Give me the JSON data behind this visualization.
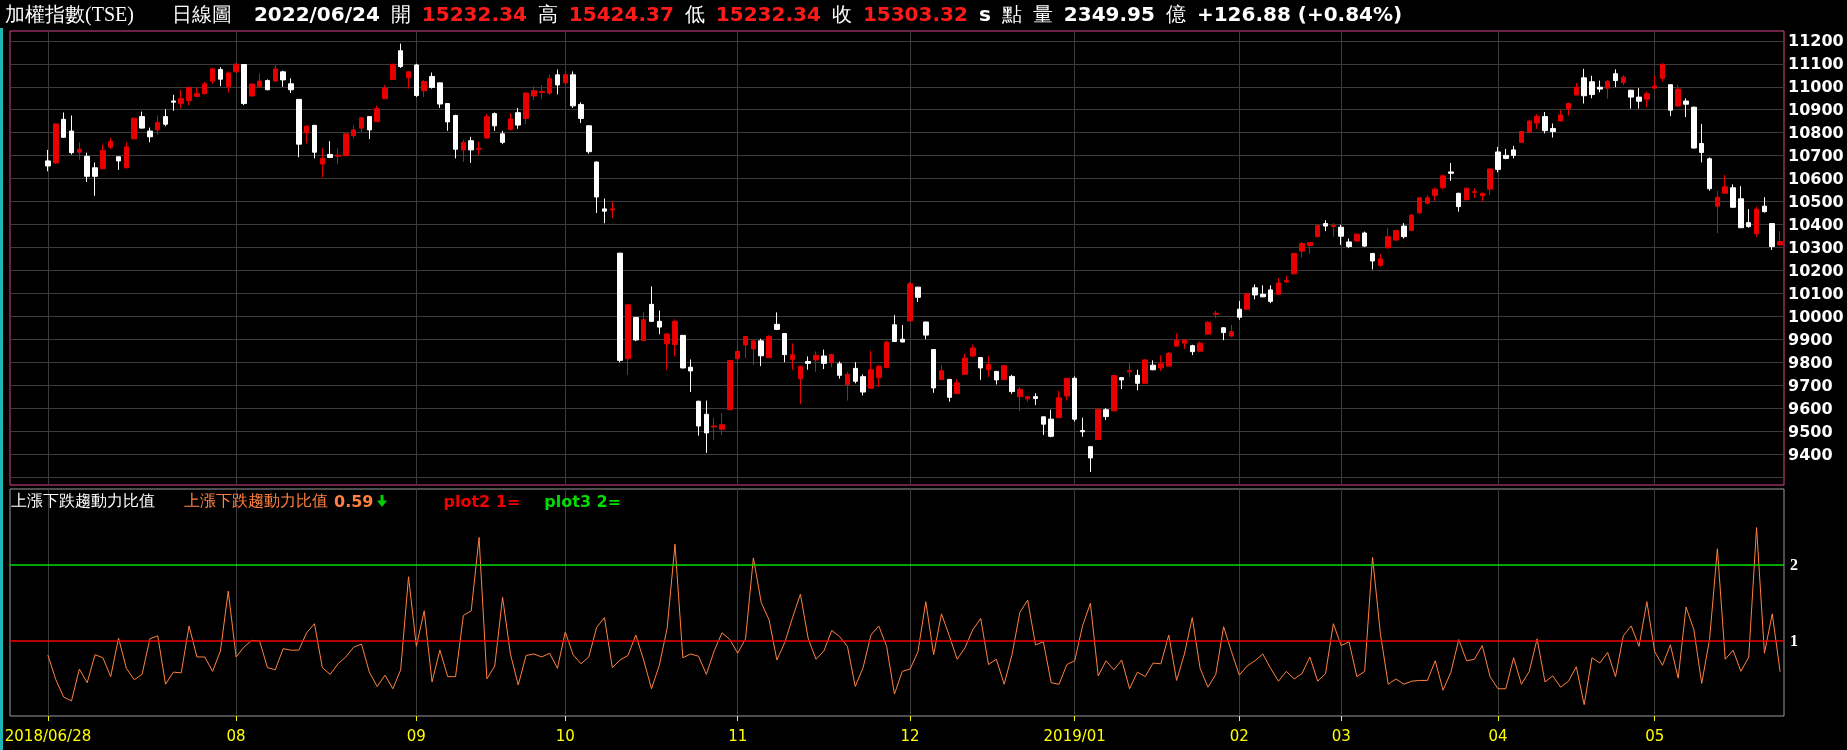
{
  "chart_data": [
    {
      "type": "candlestick",
      "title": "加權指數(TSE)",
      "subtitle": "日線圖",
      "annotations": [
        "2022/06/24",
        "開",
        "15232.34",
        "高",
        "15424.37",
        "低",
        "15232.34",
        "收",
        "15303.32",
        "s",
        "點",
        "量",
        "2349.95",
        "億",
        "+126.88 (+0.84%)"
      ],
      "categories": [
        "2018/06/28",
        null,
        null,
        null,
        null,
        null,
        null,
        null,
        null,
        null,
        null,
        null,
        null,
        null,
        null,
        null,
        null,
        null,
        null,
        null,
        null,
        null,
        null,
        null,
        "08",
        null,
        null,
        null,
        null,
        null,
        null,
        null,
        null,
        null,
        null,
        null,
        null,
        null,
        null,
        null,
        null,
        null,
        null,
        null,
        null,
        null,
        null,
        "09",
        null,
        null,
        null,
        null,
        null,
        null,
        null,
        null,
        null,
        null,
        null,
        null,
        null,
        null,
        null,
        null,
        null,
        null,
        "10",
        null,
        null,
        null,
        null,
        null,
        null,
        null,
        null,
        null,
        null,
        null,
        null,
        null,
        null,
        null,
        null,
        null,
        null,
        null,
        null,
        null,
        "11",
        null,
        null,
        null,
        null,
        null,
        null,
        null,
        null,
        null,
        null,
        null,
        null,
        null,
        null,
        null,
        null,
        null,
        null,
        null,
        null,
        null,
        "12",
        null,
        null,
        null,
        null,
        null,
        null,
        null,
        null,
        null,
        null,
        null,
        null,
        null,
        null,
        null,
        null,
        null,
        null,
        null,
        null,
        "2019/01",
        null,
        null,
        null,
        null,
        null,
        null,
        null,
        null,
        null,
        null,
        null,
        null,
        null,
        null,
        null,
        null,
        null,
        null,
        null,
        null,
        "02",
        null,
        null,
        null,
        null,
        null,
        null,
        null,
        null,
        null,
        null,
        null,
        null,
        "03",
        null,
        null,
        null,
        null,
        null,
        null,
        null,
        null,
        null,
        null,
        null,
        null,
        null,
        null,
        null,
        null,
        null,
        null,
        null,
        "04",
        null,
        null,
        null,
        null,
        null,
        null,
        null,
        null,
        null,
        null,
        null,
        null,
        null,
        null,
        null,
        null,
        null,
        null,
        null,
        "05",
        null,
        null,
        null,
        null,
        null,
        null,
        null,
        null,
        null,
        null,
        null,
        null,
        null,
        null,
        null,
        null
      ],
      "ohlc": [
        [
          10677,
          10725,
          10632,
          10655
        ],
        [
          10668,
          10842,
          10665,
          10838
        ],
        [
          10858,
          10888,
          10778,
          10780
        ],
        [
          10807,
          10875,
          10705,
          10713
        ],
        [
          10715,
          10758,
          10682,
          10728
        ],
        [
          10697,
          10713,
          10585,
          10610
        ],
        [
          10647,
          10670,
          10525,
          10610
        ],
        [
          10643,
          10748,
          10642,
          10722
        ],
        [
          10737,
          10778,
          10728,
          10762
        ],
        [
          10695,
          10695,
          10638,
          10677
        ],
        [
          10647,
          10758,
          10645,
          10738
        ],
        [
          10773,
          10867,
          10772,
          10863
        ],
        [
          10870,
          10892,
          10818,
          10820
        ],
        [
          10807,
          10822,
          10758,
          10782
        ],
        [
          10812,
          10875,
          10790,
          10845
        ],
        [
          10870,
          10902,
          10828,
          10837
        ],
        [
          10938,
          10965,
          10895,
          10933
        ],
        [
          10928,
          10987,
          10905,
          10948
        ],
        [
          10940,
          11000,
          10920,
          10997
        ],
        [
          10958,
          10997,
          10957,
          10970
        ],
        [
          10970,
          11022,
          10968,
          11013
        ],
        [
          11025,
          11083,
          11013,
          11078
        ],
        [
          11075,
          11085,
          11003,
          11033
        ],
        [
          11000,
          11067,
          10975,
          11060
        ],
        [
          11065,
          11103,
          11063,
          11098
        ],
        [
          11097,
          11098,
          10920,
          10927
        ],
        [
          10960,
          11015,
          10958,
          11012
        ],
        [
          11000,
          11058,
          10995,
          11025
        ],
        [
          11027,
          11032,
          10985,
          10987
        ],
        [
          11025,
          11097,
          11023,
          11078
        ],
        [
          11065,
          11070,
          11000,
          11030
        ],
        [
          11013,
          11037,
          10973,
          10987
        ],
        [
          10945,
          10947,
          10693,
          10750
        ],
        [
          10800,
          10833,
          10753,
          10828
        ],
        [
          10832,
          10833,
          10688,
          10715
        ],
        [
          10663,
          10732,
          10605,
          10688
        ],
        [
          10705,
          10763,
          10690,
          10692
        ],
        [
          10697,
          10732,
          10662,
          10702
        ],
        [
          10700,
          10797,
          10698,
          10795
        ],
        [
          10787,
          10832,
          10775,
          10812
        ],
        [
          10820,
          10868,
          10803,
          10865
        ],
        [
          10870,
          10872,
          10772,
          10812
        ],
        [
          10848,
          10918,
          10847,
          10905
        ],
        [
          10948,
          11008,
          10947,
          10992
        ],
        [
          11032,
          11100,
          11030,
          11098
        ],
        [
          11157,
          11188,
          11082,
          11088
        ],
        [
          11040,
          11067,
          10992,
          11065
        ],
        [
          11095,
          11100,
          10955,
          10962
        ],
        [
          10983,
          11030,
          10955,
          11023
        ],
        [
          11045,
          11062,
          10992,
          10997
        ],
        [
          11017,
          11018,
          10908,
          10925
        ],
        [
          10927,
          10928,
          10808,
          10847
        ],
        [
          10875,
          10878,
          10688,
          10728
        ],
        [
          10725,
          10770,
          10672,
          10757
        ],
        [
          10765,
          10782,
          10668,
          10725
        ],
        [
          10728,
          10762,
          10703,
          10732
        ],
        [
          10777,
          10882,
          10773,
          10870
        ],
        [
          10883,
          10888,
          10808,
          10830
        ],
        [
          10795,
          10808,
          10750,
          10758
        ],
        [
          10813,
          10885,
          10812,
          10860
        ],
        [
          10887,
          10908,
          10817,
          10833
        ],
        [
          10862,
          10975,
          10838,
          10973
        ],
        [
          10960,
          11003,
          10942,
          10983
        ],
        [
          10975,
          11008,
          10948,
          10980
        ],
        [
          10972,
          11053,
          10965,
          11035
        ],
        [
          11052,
          11075,
          10967,
          11008
        ],
        [
          11017,
          11067,
          11015,
          11053
        ],
        [
          11052,
          11067,
          10908,
          10917
        ],
        [
          10923,
          10932,
          10842,
          10862
        ],
        [
          10830,
          10832,
          10708,
          10717
        ],
        [
          10672,
          10675,
          10450,
          10520
        ],
        [
          10468,
          10513,
          10405,
          10458
        ],
        [
          10463,
          10500,
          10428,
          10468
        ],
        [
          10275,
          10277,
          9800,
          9808
        ],
        [
          9815,
          10052,
          9745,
          10050
        ],
        [
          9995,
          9997,
          9892,
          9897
        ],
        [
          9895,
          10017,
          9893,
          9985
        ],
        [
          10052,
          10130,
          9977,
          9978
        ],
        [
          9978,
          10025,
          9922,
          9953
        ],
        [
          9880,
          9927,
          9767,
          9923
        ],
        [
          9877,
          9987,
          9825,
          9978
        ],
        [
          9917,
          9918,
          9773,
          9775
        ],
        [
          9778,
          9812,
          9670,
          9762
        ],
        [
          9630,
          9632,
          9480,
          9522
        ],
        [
          9573,
          9633,
          9405,
          9492
        ],
        [
          9518,
          9558,
          9462,
          9522
        ],
        [
          9508,
          9578,
          9483,
          9528
        ],
        [
          9593,
          9808,
          9592,
          9807
        ],
        [
          9815,
          9872,
          9742,
          9847
        ],
        [
          9875,
          9913,
          9818,
          9912
        ],
        [
          9858,
          9897,
          9788,
          9893
        ],
        [
          9893,
          9902,
          9783,
          9828
        ],
        [
          9820,
          9917,
          9818,
          9913
        ],
        [
          9965,
          10017,
          9940,
          9943
        ],
        [
          9925,
          9927,
          9800,
          9833
        ],
        [
          9812,
          9882,
          9767,
          9832
        ],
        [
          9728,
          9785,
          9617,
          9782
        ],
        [
          9803,
          9825,
          9767,
          9795
        ],
        [
          9810,
          9847,
          9758,
          9830
        ],
        [
          9827,
          9855,
          9770,
          9795
        ],
        [
          9798,
          9838,
          9778,
          9833
        ],
        [
          9793,
          9803,
          9728,
          9743
        ],
        [
          9703,
          9758,
          9633,
          9747
        ],
        [
          9773,
          9800,
          9708,
          9717
        ],
        [
          9737,
          9747,
          9655,
          9670
        ],
        [
          9687,
          9850,
          9685,
          9767
        ],
        [
          9733,
          9788,
          9692,
          9782
        ],
        [
          9777,
          9893,
          9773,
          9887
        ],
        [
          9963,
          10005,
          9888,
          9890
        ],
        [
          9900,
          9962,
          9887,
          9888
        ],
        [
          9980,
          10150,
          9978,
          10142
        ],
        [
          10127,
          10128,
          10063,
          10083
        ],
        [
          9975,
          9977,
          9900,
          9918
        ],
        [
          9855,
          9857,
          9667,
          9688
        ],
        [
          9725,
          9788,
          9723,
          9763
        ],
        [
          9725,
          9727,
          9628,
          9647
        ],
        [
          9663,
          9725,
          9662,
          9710
        ],
        [
          9747,
          9837,
          9745,
          9818
        ],
        [
          9827,
          9877,
          9822,
          9862
        ],
        [
          9820,
          9822,
          9723,
          9775
        ],
        [
          9767,
          9828,
          9735,
          9790
        ],
        [
          9760,
          9762,
          9703,
          9723
        ],
        [
          9725,
          9787,
          9723,
          9785
        ],
        [
          9738,
          9745,
          9662,
          9672
        ],
        [
          9650,
          9692,
          9587,
          9682
        ],
        [
          9640,
          9653,
          9628,
          9650
        ],
        [
          9650,
          9665,
          9613,
          9642
        ],
        [
          9562,
          9563,
          9483,
          9530
        ],
        [
          9552,
          9593,
          9473,
          9477
        ],
        [
          9558,
          9675,
          9557,
          9645
        ],
        [
          9653,
          9732,
          9633,
          9730
        ],
        [
          9730,
          9738,
          9542,
          9552
        ],
        [
          9502,
          9558,
          9475,
          9497
        ],
        [
          9432,
          9433,
          9322,
          9383
        ],
        [
          9463,
          9597,
          9462,
          9595
        ],
        [
          9593,
          9600,
          9548,
          9563
        ],
        [
          9588,
          9745,
          9587,
          9742
        ],
        [
          9733,
          9735,
          9683,
          9723
        ],
        [
          9758,
          9798,
          9735,
          9763
        ],
        [
          9743,
          9767,
          9678,
          9708
        ],
        [
          9708,
          9812,
          9707,
          9810
        ],
        [
          9787,
          9808,
          9765,
          9767
        ],
        [
          9775,
          9830,
          9762,
          9793
        ],
        [
          9783,
          9845,
          9782,
          9838
        ],
        [
          9870,
          9925,
          9868,
          9895
        ],
        [
          9883,
          9898,
          9858,
          9897
        ],
        [
          9872,
          9876,
          9831,
          9846
        ],
        [
          9848,
          9890,
          9844,
          9883
        ],
        [
          9922,
          9979,
          9920,
          9974
        ],
        [
          10009,
          10024,
          9992,
          10013
        ],
        [
          9950,
          9953,
          9896,
          9929
        ],
        [
          9914,
          9963,
          9909,
          9933
        ],
        [
          10031,
          10067,
          9985,
          9996
        ],
        [
          10031,
          10102,
          10029,
          10098
        ],
        [
          10124,
          10139,
          10074,
          10093
        ],
        [
          10096,
          10135,
          10083,
          10085
        ],
        [
          10115,
          10135,
          10057,
          10065
        ],
        [
          10096,
          10167,
          10094,
          10145
        ],
        [
          10150,
          10176,
          10145,
          10156
        ],
        [
          10185,
          10276,
          10182,
          10274
        ],
        [
          10284,
          10324,
          10256,
          10317
        ],
        [
          10308,
          10324,
          10271,
          10321
        ],
        [
          10347,
          10397,
          10345,
          10395
        ],
        [
          10404,
          10419,
          10371,
          10393
        ],
        [
          10391,
          10406,
          10347,
          10397
        ],
        [
          10388,
          10399,
          10311,
          10349
        ],
        [
          10324,
          10339,
          10297,
          10304
        ],
        [
          10328,
          10360,
          10326,
          10358
        ],
        [
          10363,
          10369,
          10302,
          10306
        ],
        [
          10274,
          10276,
          10204,
          10241
        ],
        [
          10222,
          10271,
          10215,
          10250
        ],
        [
          10298,
          10386,
          10297,
          10347
        ],
        [
          10332,
          10378,
          10330,
          10374
        ],
        [
          10393,
          10406,
          10339,
          10347
        ],
        [
          10374,
          10445,
          10371,
          10441
        ],
        [
          10451,
          10519,
          10445,
          10516
        ],
        [
          10493,
          10528,
          10486,
          10517
        ],
        [
          10527,
          10560,
          10504,
          10554
        ],
        [
          10560,
          10618,
          10553,
          10612
        ],
        [
          10629,
          10668,
          10590,
          10623
        ],
        [
          10536,
          10538,
          10456,
          10478
        ],
        [
          10508,
          10560,
          10506,
          10558
        ],
        [
          10540,
          10558,
          10516,
          10543
        ],
        [
          10525,
          10538,
          10501,
          10536
        ],
        [
          10554,
          10645,
          10528,
          10642
        ],
        [
          10716,
          10738,
          10627,
          10640
        ],
        [
          10701,
          10729,
          10684,
          10688
        ],
        [
          10725,
          10742,
          10688,
          10701
        ],
        [
          10758,
          10809,
          10755,
          10805
        ],
        [
          10803,
          10855,
          10796,
          10851
        ],
        [
          10842,
          10881,
          10816,
          10870
        ],
        [
          10870,
          10890,
          10797,
          10809
        ],
        [
          10818,
          10840,
          10779,
          10805
        ],
        [
          10851,
          10899,
          10849,
          10877
        ],
        [
          10905,
          10931,
          10875,
          10927
        ],
        [
          10964,
          11016,
          10963,
          10998
        ],
        [
          11039,
          11078,
          10927,
          10961
        ],
        [
          11022,
          11048,
          10950,
          10966
        ],
        [
          10998,
          11027,
          10976,
          10990
        ],
        [
          10994,
          11029,
          10948,
          11024
        ],
        [
          11057,
          11076,
          10998,
          11027
        ],
        [
          11018,
          11050,
          11007,
          11042
        ],
        [
          10985,
          10987,
          10905,
          10955
        ],
        [
          10955,
          10994,
          10905,
          10937
        ],
        [
          10946,
          10979,
          10911,
          10970
        ],
        [
          10994,
          11048,
          10992,
          11003
        ],
        [
          11037,
          11102,
          11022,
          11098
        ],
        [
          11009,
          11011,
          10872,
          10898
        ],
        [
          10916,
          11009,
          10914,
          10990
        ],
        [
          10938,
          10950,
          10868,
          10924
        ],
        [
          10911,
          10914,
          10731,
          10733
        ],
        [
          10753,
          10838,
          10671,
          10714
        ],
        [
          10686,
          10692,
          10547,
          10556
        ],
        [
          10480,
          10547,
          10362,
          10519
        ],
        [
          10536,
          10616,
          10534,
          10564
        ],
        [
          10560,
          10575,
          10473,
          10475
        ],
        [
          10512,
          10567,
          10384,
          10386
        ],
        [
          10408,
          10467,
          10386,
          10391
        ],
        [
          10360,
          10478,
          10345,
          10467
        ],
        [
          10480,
          10519,
          10452,
          10456
        ],
        [
          10404,
          10406,
          10289,
          10304
        ],
        [
          10311,
          10371,
          10310,
          10326
        ]
      ],
      "colors": [
        "#ffffff",
        "#e60000",
        "#ffffff",
        "#ffffff",
        "#e60000",
        "#ffffff",
        "#ffffff",
        "#e60000",
        "#e60000",
        "#ffffff",
        "#e60000",
        "#e60000",
        "#ffffff",
        "#ffffff",
        "#e60000",
        "#ffffff",
        "#ffffff",
        "#e60000",
        "#e60000",
        "#e60000",
        "#e60000",
        "#e60000",
        "#ffffff",
        "#e60000",
        "#e60000",
        "#ffffff",
        "#e60000",
        "#e60000",
        "#ffffff",
        "#e60000",
        "#ffffff",
        "#ffffff",
        "#ffffff",
        "#e60000",
        "#ffffff",
        "#e60000",
        "#ffffff",
        "#e60000",
        "#e60000",
        "#e60000",
        "#e60000",
        "#ffffff",
        "#e60000",
        "#e60000",
        "#e60000",
        "#ffffff",
        "#e60000",
        "#ffffff",
        "#e60000",
        "#ffffff",
        "#ffffff",
        "#ffffff",
        "#ffffff",
        "#e60000",
        "#ffffff",
        "#e60000",
        "#e60000",
        "#ffffff",
        "#ffffff",
        "#e60000",
        "#ffffff",
        "#e60000",
        "#e60000",
        "#e60000",
        "#e60000",
        "#ffffff",
        "#e60000",
        "#ffffff",
        "#ffffff",
        "#ffffff",
        "#ffffff",
        "#ffffff",
        "#e60000",
        "#ffffff",
        "#e60000",
        "#ffffff",
        "#e60000",
        "#ffffff",
        "#ffffff",
        "#e60000",
        "#e60000",
        "#ffffff",
        "#ffffff",
        "#ffffff",
        "#ffffff",
        "#e60000",
        "#e60000",
        "#e60000",
        "#e60000",
        "#e60000",
        "#e60000",
        "#ffffff",
        "#e60000",
        "#ffffff",
        "#ffffff",
        "#e60000",
        "#e60000",
        "#ffffff",
        "#e60000",
        "#ffffff",
        "#e60000",
        "#ffffff",
        "#e60000",
        "#ffffff",
        "#ffffff",
        "#e60000",
        "#e60000",
        "#e60000",
        "#ffffff",
        "#ffffff",
        "#e60000",
        "#ffffff",
        "#ffffff",
        "#ffffff",
        "#e60000",
        "#ffffff",
        "#e60000",
        "#e60000",
        "#e60000",
        "#ffffff",
        "#e60000",
        "#ffffff",
        "#e60000",
        "#ffffff",
        "#e60000",
        "#e60000",
        "#ffffff",
        "#ffffff",
        "#ffffff",
        "#e60000",
        "#e60000",
        "#ffffff",
        "#ffffff",
        "#ffffff",
        "#e60000",
        "#ffffff",
        "#e60000",
        "#ffffff",
        "#e60000",
        "#ffffff",
        "#e60000",
        "#ffffff",
        "#e60000",
        "#e60000",
        "#e60000",
        "#e60000",
        "#ffffff",
        "#e60000",
        "#e60000",
        "#e60000",
        "#ffffff",
        "#e60000",
        "#ffffff",
        "#e60000",
        "#ffffff",
        "#ffffff",
        "#ffffff",
        "#e60000",
        "#e60000",
        "#e60000",
        "#e60000",
        "#e60000",
        "#e60000",
        "#ffffff",
        "#e60000",
        "#ffffff",
        "#ffffff",
        "#e60000",
        "#ffffff",
        "#ffffff",
        "#e60000",
        "#e60000",
        "#e60000",
        "#ffffff",
        "#e60000",
        "#e60000",
        "#e60000",
        "#e60000",
        "#e60000",
        "#ffffff",
        "#ffffff",
        "#e60000",
        "#e60000",
        "#e60000",
        "#e60000",
        "#ffffff",
        "#ffffff",
        "#ffffff",
        "#e60000",
        "#e60000",
        "#e60000",
        "#ffffff",
        "#ffffff",
        "#e60000",
        "#e60000",
        "#e60000",
        "#ffffff",
        "#ffffff",
        "#ffffff",
        "#e60000",
        "#ffffff",
        "#e60000",
        "#ffffff",
        "#ffffff",
        "#e60000",
        "#e60000",
        "#e60000",
        "#ffffff",
        "#e60000",
        "#ffffff",
        "#ffffff",
        "#ffffff",
        "#ffffff",
        "#e60000",
        "#e60000",
        "#ffffff",
        "#ffffff",
        "#ffffff",
        "#e60000",
        "#ffffff",
        "#ffffff",
        "#e60000"
      ],
      "ylim": [
        9265,
        11243
      ],
      "yticks": [
        {
          "value": 9300,
          "label": null
        },
        9400,
        9500,
        9600,
        9700,
        9800,
        9900,
        10000,
        10100,
        10200,
        10300,
        10400,
        10500,
        10600,
        10700,
        10800,
        10900,
        11000,
        11100,
        11200
      ],
      "grid": true,
      "tick_labels": "y"
    },
    {
      "type": "line",
      "title": "上漲下跌趨動力比值",
      "annotations": [
        "0.59"
      ],
      "categories": [
        "2018/06/28",
        null,
        null,
        null,
        null,
        null,
        null,
        null,
        null,
        null,
        null,
        null,
        null,
        null,
        null,
        null,
        null,
        null,
        null,
        null,
        null,
        null,
        null,
        null,
        "08",
        null,
        null,
        null,
        null,
        null,
        null,
        null,
        null,
        null,
        null,
        null,
        null,
        null,
        null,
        null,
        null,
        null,
        null,
        null,
        null,
        null,
        null,
        "09",
        null,
        null,
        null,
        null,
        null,
        null,
        null,
        null,
        null,
        null,
        null,
        null,
        null,
        null,
        null,
        null,
        null,
        null,
        "10",
        null,
        null,
        null,
        null,
        null,
        null,
        null,
        null,
        null,
        null,
        null,
        null,
        null,
        null,
        null,
        null,
        null,
        null,
        null,
        null,
        null,
        "11",
        null,
        null,
        null,
        null,
        null,
        null,
        null,
        null,
        null,
        null,
        null,
        null,
        null,
        null,
        null,
        null,
        null,
        null,
        null,
        null,
        null,
        "12",
        null,
        null,
        null,
        null,
        null,
        null,
        null,
        null,
        null,
        null,
        null,
        null,
        null,
        null,
        null,
        null,
        null,
        null,
        null,
        null,
        "2019/01",
        null,
        null,
        null,
        null,
        null,
        null,
        null,
        null,
        null,
        null,
        null,
        null,
        null,
        null,
        null,
        null,
        null,
        null,
        null,
        null,
        "02",
        null,
        null,
        null,
        null,
        null,
        null,
        null,
        null,
        null,
        null,
        null,
        null,
        "03",
        null,
        null,
        null,
        null,
        null,
        null,
        null,
        null,
        null,
        null,
        null,
        null,
        null,
        null,
        null,
        null,
        null,
        null,
        null,
        "04",
        null,
        null,
        null,
        null,
        null,
        null,
        null,
        null,
        null,
        null,
        null,
        null,
        null,
        null,
        null,
        null,
        null,
        null,
        null,
        "05",
        null,
        null,
        null,
        null,
        null,
        null,
        null,
        null,
        null,
        null,
        null,
        null,
        null,
        null,
        null,
        null
      ],
      "series": [
        {
          "name": "上漲下跌趨動力比值",
          "color": "#ff8040",
          "values": [
            0.8,
            0.48,
            0.25,
            0.2,
            0.62,
            0.44,
            0.81,
            0.77,
            0.52,
            1.03,
            0.63,
            0.48,
            0.55,
            1.02,
            1.06,
            0.42,
            0.58,
            0.57,
            1.19,
            0.78,
            0.78,
            0.59,
            0.86,
            1.65,
            0.78,
            0.91,
            1.0,
            0.99,
            0.64,
            0.61,
            0.89,
            0.87,
            0.87,
            1.1,
            1.22,
            0.64,
            0.55,
            0.69,
            0.78,
            0.91,
            0.95,
            0.58,
            0.39,
            0.54,
            0.36,
            0.61,
            1.84,
            0.92,
            1.39,
            0.45,
            0.87,
            0.52,
            0.52,
            1.33,
            1.39,
            2.36,
            0.49,
            0.66,
            1.57,
            0.82,
            0.41,
            0.8,
            0.82,
            0.78,
            0.83,
            0.63,
            1.11,
            0.81,
            0.69,
            0.78,
            1.17,
            1.3,
            0.64,
            0.74,
            0.8,
            1.07,
            0.74,
            0.36,
            0.67,
            1.16,
            2.27,
            0.77,
            0.82,
            0.79,
            0.55,
            0.86,
            1.1,
            1.01,
            0.83,
            1.02,
            2.09,
            1.5,
            1.27,
            0.74,
            0.97,
            1.3,
            1.61,
            1.02,
            0.75,
            0.86,
            1.13,
            1.05,
            0.92,
            0.39,
            0.64,
            1.07,
            1.19,
            0.92,
            0.29,
            0.59,
            0.62,
            0.85,
            1.51,
            0.81,
            1.35,
            1.06,
            0.75,
            0.9,
            1.14,
            1.29,
            0.68,
            0.75,
            0.42,
            0.81,
            1.37,
            1.53,
            0.94,
            0.98,
            0.44,
            0.42,
            0.68,
            0.73,
            1.19,
            1.49,
            0.53,
            0.73,
            0.61,
            0.74,
            0.36,
            0.58,
            0.52,
            0.7,
            0.69,
            1.07,
            0.47,
            0.82,
            1.3,
            0.63,
            0.38,
            0.55,
            1.18,
            0.85,
            0.54,
            0.66,
            0.73,
            0.82,
            0.63,
            0.46,
            0.59,
            0.49,
            0.56,
            0.78,
            0.46,
            0.56,
            1.22,
            0.93,
            0.98,
            0.52,
            0.59,
            2.1,
            1.09,
            0.42,
            0.49,
            0.42,
            0.46,
            0.47,
            0.47,
            0.73,
            0.34,
            0.58,
            1.01,
            0.73,
            0.75,
            0.93,
            0.52,
            0.36,
            0.36,
            0.77,
            0.42,
            0.59,
            1.02,
            0.45,
            0.53,
            0.38,
            0.46,
            0.65,
            0.15,
            0.77,
            0.7,
            0.84,
            0.52,
            1.06,
            1.19,
            0.92,
            1.51,
            0.85,
            0.67,
            0.94,
            0.5,
            1.44,
            1.14,
            0.43,
            1.01,
            2.21,
            0.75,
            0.87,
            0.59,
            0.78,
            2.49,
            0.83,
            1.35,
            0.59
          ]
        }
      ],
      "ylim": [
        0,
        3
      ],
      "yticks": [
        1,
        2
      ],
      "grid": "x",
      "legend": "top left",
      "ref_lines": [
        {
          "axis": "y",
          "value": 1,
          "label": "plot2 1=",
          "color": "#f00000"
        },
        {
          "axis": "y",
          "value": 2,
          "label": "plot3 2=",
          "color": "#00dd00"
        }
      ]
    }
  ]
}
